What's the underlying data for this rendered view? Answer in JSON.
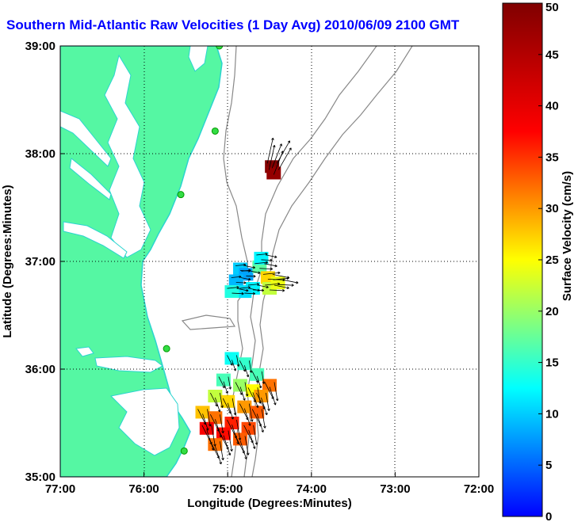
{
  "chart_data": {
    "type": "map-vector-field",
    "title": "Southern Mid-Atlantic Raw Velocities (1 Day Avg) 2010/06/09 2100 GMT",
    "xlabel": "Longitude (Degrees:Minutes)",
    "ylabel": "Latitude (Degrees:Minutes)",
    "xlim": [
      -77,
      -72
    ],
    "ylim": [
      35,
      39
    ],
    "x_ticks": [
      {
        "value": -77,
        "label": "77:00"
      },
      {
        "value": -76,
        "label": "76:00"
      },
      {
        "value": -75,
        "label": "75:00"
      },
      {
        "value": -74,
        "label": "74:00"
      },
      {
        "value": -73,
        "label": "73:00"
      },
      {
        "value": -72,
        "label": "72:00"
      }
    ],
    "y_ticks": [
      {
        "value": 35,
        "label": "35:00"
      },
      {
        "value": 36,
        "label": "36:00"
      },
      {
        "value": 37,
        "label": "37:00"
      },
      {
        "value": 38,
        "label": "38:00"
      },
      {
        "value": 39,
        "label": "39:00"
      }
    ],
    "grid": true,
    "colorbar": {
      "label": "Surface Velocity (cm/s)",
      "min": 0,
      "max": 50,
      "ticks": [
        0,
        5,
        10,
        15,
        20,
        25,
        30,
        35,
        40,
        45,
        50
      ],
      "colormap": "jet"
    },
    "colors": {
      "land": "#55f7a3",
      "coastline": "#2bd4cf",
      "title": "#0000ff",
      "isobath": "#888888",
      "station": "#33dd44"
    },
    "regions": [
      {
        "name": "north-cell",
        "cells": [
          {
            "lon": -74.47,
            "lat": 37.88,
            "speed": 50
          },
          {
            "lon": -74.45,
            "lat": 37.82,
            "speed": 48
          }
        ]
      },
      {
        "name": "mid-cluster",
        "cells": [
          {
            "lon": -74.85,
            "lat": 36.93,
            "speed": 10
          },
          {
            "lon": -74.78,
            "lat": 36.88,
            "speed": 8
          },
          {
            "lon": -74.9,
            "lat": 36.82,
            "speed": 9
          },
          {
            "lon": -74.62,
            "lat": 36.95,
            "speed": 17
          },
          {
            "lon": -74.52,
            "lat": 36.85,
            "speed": 27
          },
          {
            "lon": -74.5,
            "lat": 36.75,
            "speed": 22
          },
          {
            "lon": -74.7,
            "lat": 36.75,
            "speed": 12
          },
          {
            "lon": -74.8,
            "lat": 36.72,
            "speed": 11
          },
          {
            "lon": -74.95,
            "lat": 36.72,
            "speed": 14
          },
          {
            "lon": -74.4,
            "lat": 36.8,
            "speed": 24
          },
          {
            "lon": -74.6,
            "lat": 37.03,
            "speed": 12
          }
        ]
      },
      {
        "name": "south-cluster",
        "cells": [
          {
            "lon": -74.95,
            "lat": 36.1,
            "speed": 13
          },
          {
            "lon": -74.8,
            "lat": 36.05,
            "speed": 15
          },
          {
            "lon": -74.65,
            "lat": 35.95,
            "speed": 16
          },
          {
            "lon": -74.5,
            "lat": 35.85,
            "speed": 32
          },
          {
            "lon": -75.05,
            "lat": 35.9,
            "speed": 16
          },
          {
            "lon": -74.85,
            "lat": 35.85,
            "speed": 20
          },
          {
            "lon": -74.7,
            "lat": 35.8,
            "speed": 25
          },
          {
            "lon": -75.15,
            "lat": 35.75,
            "speed": 22
          },
          {
            "lon": -75.0,
            "lat": 35.7,
            "speed": 27
          },
          {
            "lon": -74.8,
            "lat": 35.65,
            "speed": 30
          },
          {
            "lon": -74.65,
            "lat": 35.6,
            "speed": 33
          },
          {
            "lon": -75.3,
            "lat": 35.6,
            "speed": 28
          },
          {
            "lon": -75.15,
            "lat": 35.55,
            "speed": 32
          },
          {
            "lon": -74.95,
            "lat": 35.5,
            "speed": 36
          },
          {
            "lon": -74.75,
            "lat": 35.45,
            "speed": 34
          },
          {
            "lon": -75.25,
            "lat": 35.45,
            "speed": 38
          },
          {
            "lon": -75.05,
            "lat": 35.4,
            "speed": 37
          },
          {
            "lon": -74.85,
            "lat": 35.35,
            "speed": 33
          },
          {
            "lon": -75.15,
            "lat": 35.3,
            "speed": 32
          },
          {
            "lon": -74.6,
            "lat": 35.75,
            "speed": 30
          }
        ]
      }
    ],
    "stations": [
      {
        "lon": -75.1,
        "lat": 39.0
      },
      {
        "lon": -75.15,
        "lat": 38.21
      },
      {
        "lon": -75.56,
        "lat": 37.62
      },
      {
        "lon": -75.73,
        "lat": 36.19
      },
      {
        "lon": -75.52,
        "lat": 35.24
      }
    ]
  }
}
